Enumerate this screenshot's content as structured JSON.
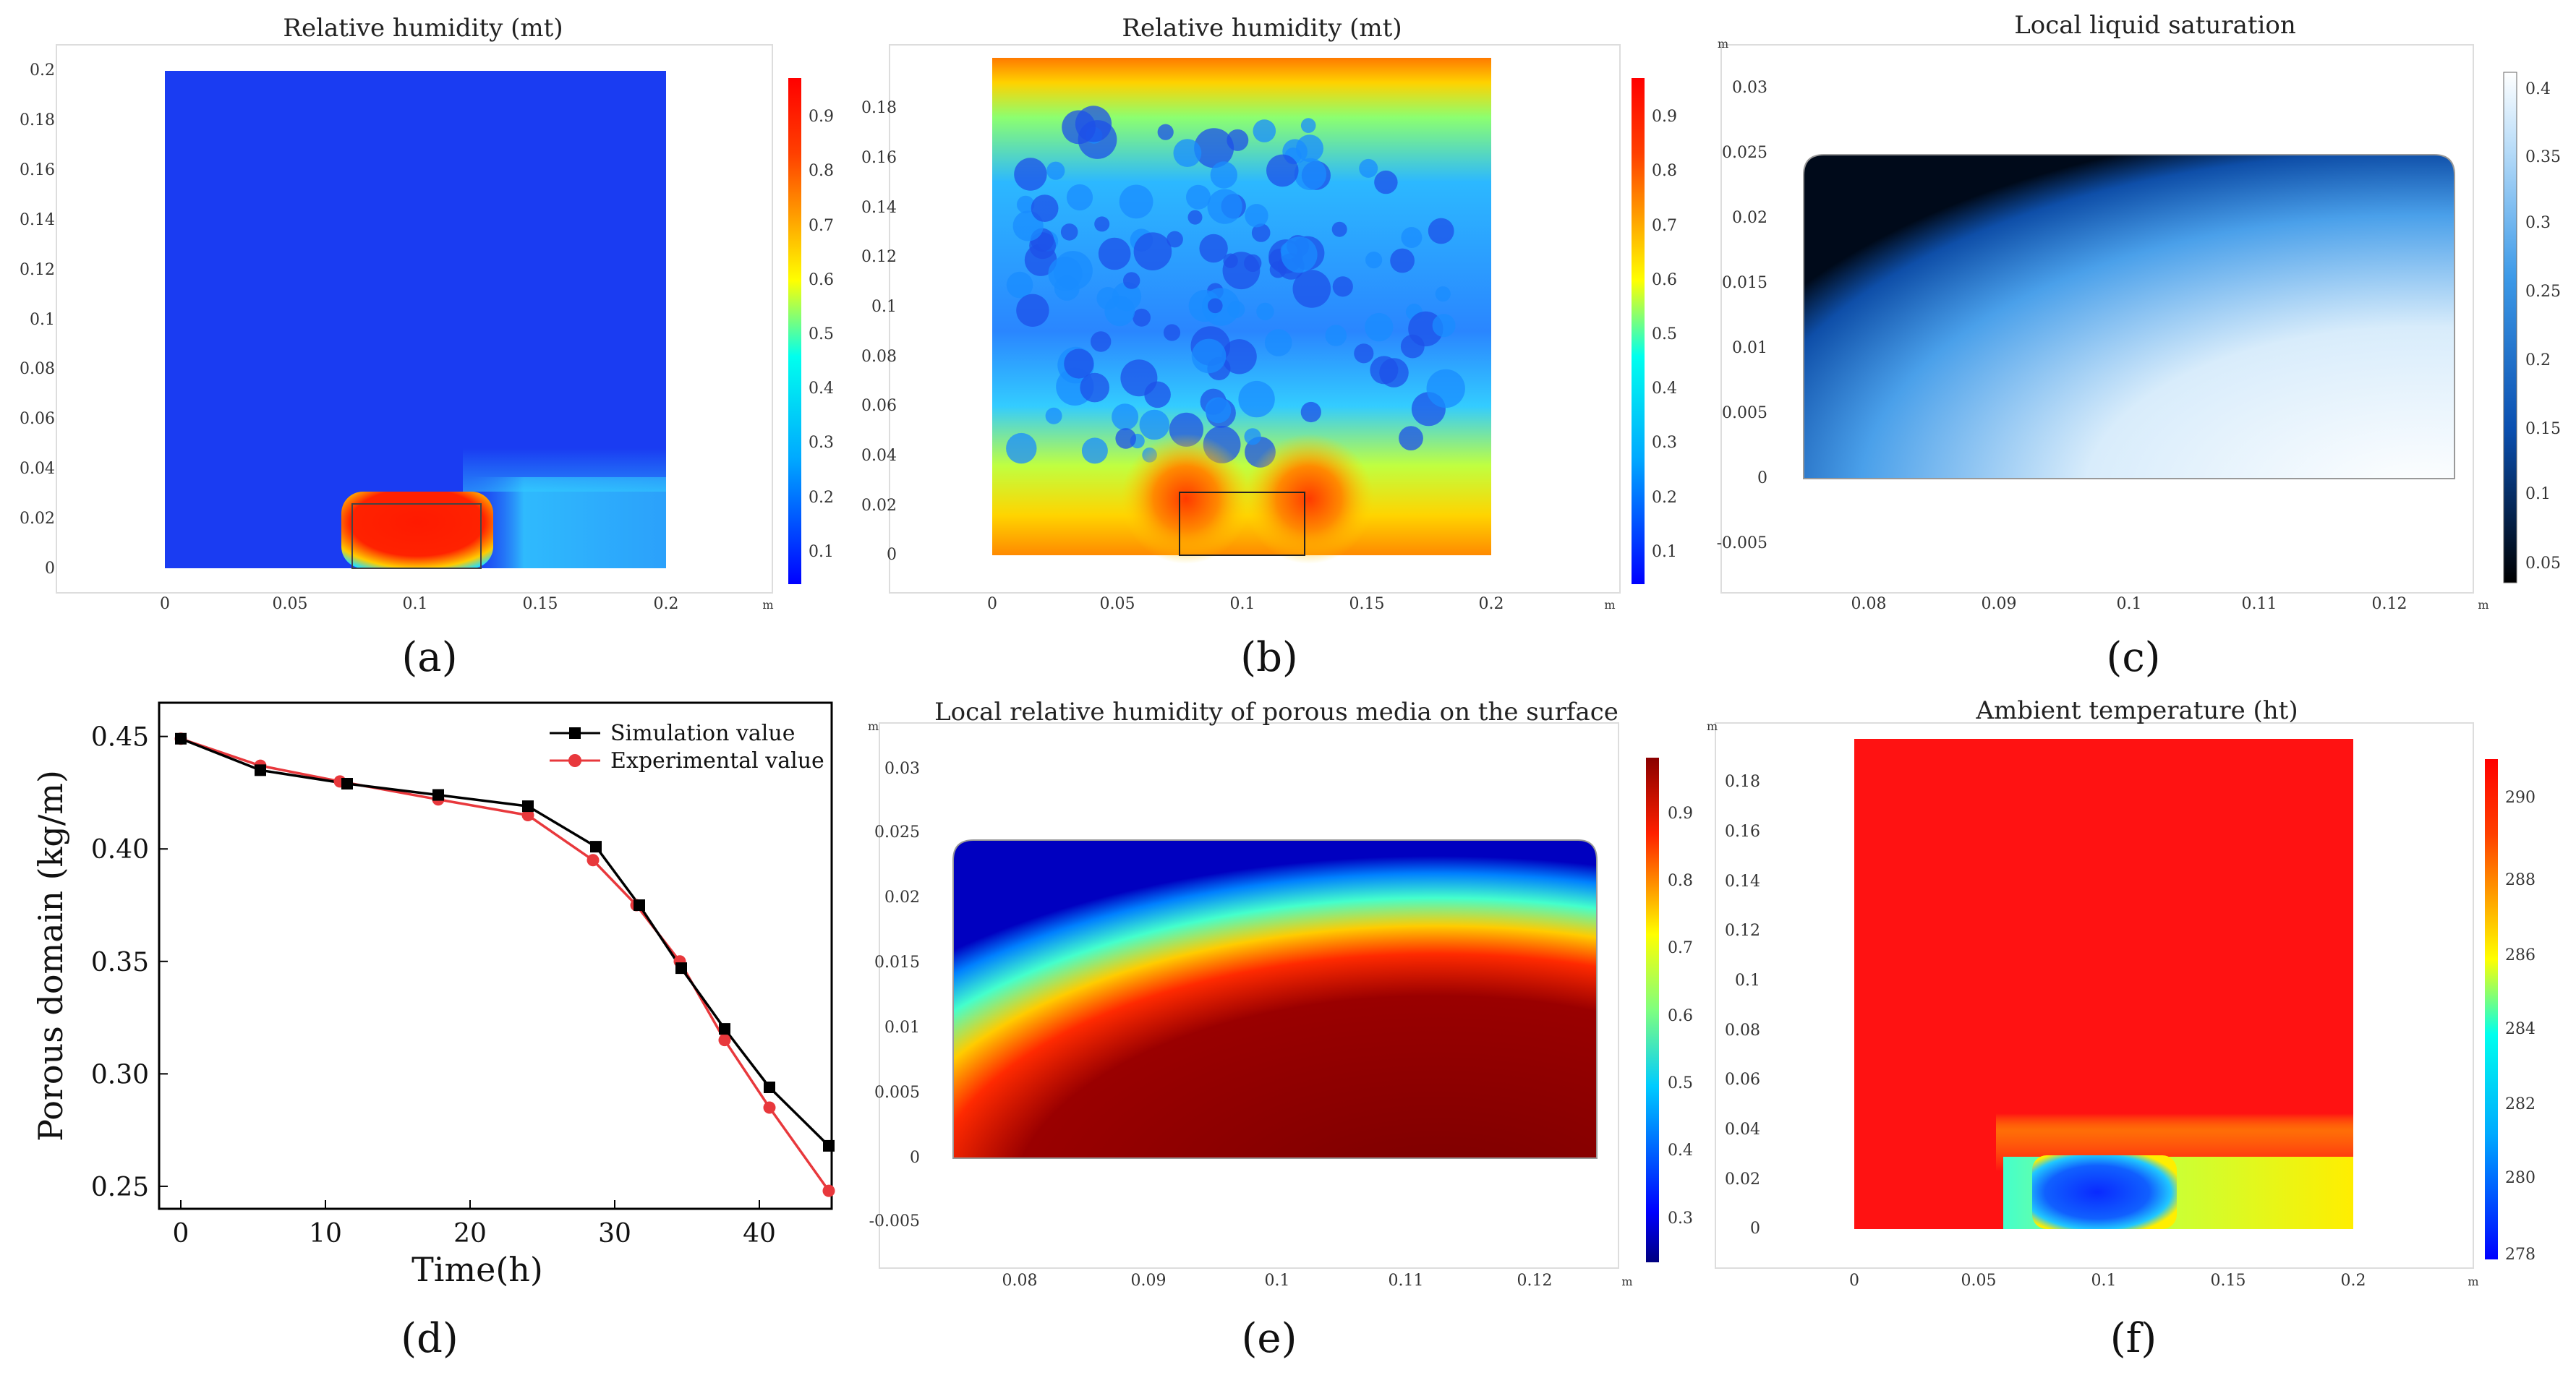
{
  "colors": {
    "jet": [
      "#00007f",
      "#0000ff",
      "#007fff",
      "#00ffff",
      "#7fff7f",
      "#ffff00",
      "#ff7f00",
      "#ff0000",
      "#7f0000"
    ],
    "blue_field": "#1a3cf2",
    "red_field": "#ff1212",
    "sim_line": "#000000",
    "exp_line": "#e8383c"
  },
  "panels": [
    {
      "id": "a",
      "caption": "(a)",
      "title": "Relative humidity (mt)",
      "unit": "m",
      "xticks": [
        "0",
        "0.05",
        "0.1",
        "0.15",
        "0.2"
      ],
      "yticks": [
        "0",
        "0.02",
        "0.04",
        "0.06",
        "0.08",
        "0.1",
        "0.12",
        "0.14",
        "0.16",
        "0.18",
        "0.2"
      ],
      "colorbar_ticks": [
        "0.1",
        "0.2",
        "0.3",
        "0.4",
        "0.5",
        "0.6",
        "0.7",
        "0.8",
        "0.9"
      ]
    },
    {
      "id": "b",
      "caption": "(b)",
      "title": "Relative humidity (mt)",
      "unit": "m",
      "xticks": [
        "0",
        "0.05",
        "0.1",
        "0.15",
        "0.2"
      ],
      "yticks": [
        "0",
        "0.02",
        "0.04",
        "0.06",
        "0.08",
        "0.1",
        "0.12",
        "0.14",
        "0.16",
        "0.18"
      ],
      "colorbar_ticks": [
        "0.1",
        "0.2",
        "0.3",
        "0.4",
        "0.5",
        "0.6",
        "0.7",
        "0.8",
        "0.9"
      ]
    },
    {
      "id": "c",
      "caption": "(c)",
      "title": "Local liquid saturation",
      "unit": "m",
      "xticks": [
        "0.08",
        "0.09",
        "0.1",
        "0.11",
        "0.12"
      ],
      "yticks": [
        "-0.005",
        "0",
        "0.005",
        "0.01",
        "0.015",
        "0.02",
        "0.025",
        "0.03"
      ],
      "colorbar_ticks": [
        "0.05",
        "0.1",
        "0.15",
        "0.2",
        "0.25",
        "0.3",
        "0.35",
        "0.4"
      ]
    },
    {
      "id": "e",
      "caption": "(e)",
      "title": "Local relative humidity of porous media on the surface",
      "unit": "m",
      "xticks": [
        "0.08",
        "0.09",
        "0.1",
        "0.11",
        "0.12"
      ],
      "yticks": [
        "-0.005",
        "0",
        "0.005",
        "0.01",
        "0.015",
        "0.02",
        "0.025",
        "0.03"
      ],
      "colorbar_ticks": [
        "0.3",
        "0.4",
        "0.5",
        "0.6",
        "0.7",
        "0.8",
        "0.9"
      ]
    },
    {
      "id": "f",
      "caption": "(f)",
      "title": "Ambient temperature (ht)",
      "unit": "m",
      "xticks": [
        "0",
        "0.05",
        "0.1",
        "0.15",
        "0.2"
      ],
      "yticks": [
        "0",
        "0.02",
        "0.04",
        "0.06",
        "0.08",
        "0.1",
        "0.12",
        "0.14",
        "0.16",
        "0.18"
      ],
      "colorbar_ticks": [
        "278",
        "280",
        "282",
        "284",
        "286",
        "288",
        "290"
      ]
    }
  ],
  "chart_data": {
    "type": "line",
    "caption": "(d)",
    "title": "",
    "xlabel": "Time(h)",
    "ylabel": "Porous domain (kg/m)",
    "xlim": [
      -1.5,
      45
    ],
    "ylim": [
      0.24,
      0.465
    ],
    "xticks": [
      0,
      10,
      20,
      30,
      40
    ],
    "yticks": [
      0.25,
      0.3,
      0.35,
      0.4,
      0.45
    ],
    "ytick_labels": [
      "0.25",
      "0.30",
      "0.35",
      "0.40",
      "0.45"
    ],
    "legend_position": "top-right",
    "series": [
      {
        "name": "Simulation value",
        "marker": "square",
        "x": [
          0,
          5.5,
          11.5,
          17.8,
          24,
          28.7,
          31.7,
          34.6,
          37.6,
          40.7,
          44.8
        ],
        "y": [
          0.449,
          0.435,
          0.429,
          0.424,
          0.419,
          0.401,
          0.375,
          0.347,
          0.32,
          0.294,
          0.268
        ]
      },
      {
        "name": "Experimental value",
        "marker": "circle",
        "x": [
          0,
          5.5,
          11,
          17.8,
          24,
          28.5,
          31.5,
          34.5,
          37.6,
          40.7,
          44.8
        ],
        "y": [
          0.449,
          0.437,
          0.43,
          0.422,
          0.415,
          0.395,
          0.375,
          0.35,
          0.315,
          0.285,
          0.248
        ]
      }
    ]
  }
}
